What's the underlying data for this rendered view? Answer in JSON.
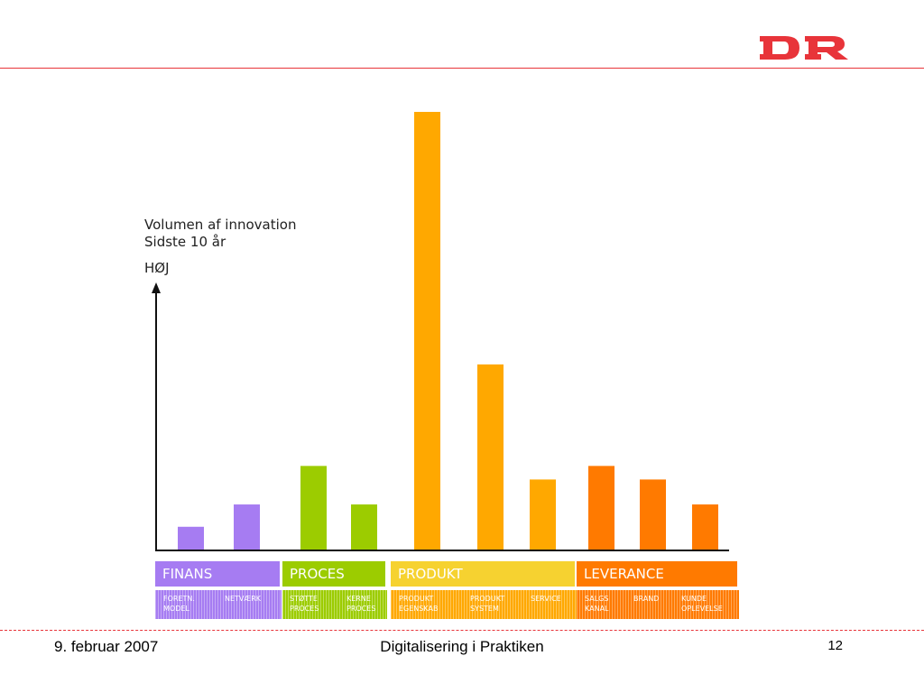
{
  "header": {
    "logo_text": "DR",
    "logo_color": "#e8343a"
  },
  "footer": {
    "date": "9. februar 2007",
    "title": "Digitalisering i Praktiken",
    "page": "12"
  },
  "chart_data": {
    "type": "bar",
    "title": "",
    "ylabel_line1": "Volumen af innovation",
    "ylabel_line2": "Sidste 10 år",
    "y_high_label": "HØJ",
    "ylim": [
      0,
      100
    ],
    "grid": false,
    "categories": [
      {
        "group": "FINANS",
        "label": "FORETN.\nMODEL",
        "value": 5.2,
        "color": "#a67cf2"
      },
      {
        "group": "FINANS",
        "label": "NETVÆRK",
        "value": 10.3,
        "color": "#a67cf2"
      },
      {
        "group": "PROCES",
        "label": "STØTTE\nPROCES",
        "value": 19.1,
        "color": "#9ccc00"
      },
      {
        "group": "PROCES",
        "label": "KERNE\nPROCES",
        "value": 10.3,
        "color": "#9ccc00"
      },
      {
        "group": "PRODUKT",
        "label": "PRODUKT\nEGENSKAB",
        "value": 100,
        "color": "#ffa800"
      },
      {
        "group": "PRODUKT",
        "label": "PRODUKT\nSYSTEM",
        "value": 42.3,
        "color": "#ffa800"
      },
      {
        "group": "PRODUKT",
        "label": "SERVICE",
        "value": 16.0,
        "color": "#ffa800"
      },
      {
        "group": "LEVERANCE",
        "label": "SALGS\nKANAL",
        "value": 19.1,
        "color": "#ff7a00"
      },
      {
        "group": "LEVERANCE",
        "label": "BRAND",
        "value": 16.0,
        "color": "#ff7a00"
      },
      {
        "group": "LEVERANCE",
        "label": "KUNDE\nOPLEVELSE",
        "value": 10.3,
        "color": "#ff7a00"
      }
    ],
    "groups": [
      {
        "name": "FINANS",
        "color": "#a67cf2"
      },
      {
        "name": "PROCES",
        "color": "#9ccc00"
      },
      {
        "name": "PRODUKT",
        "color": "#f6d230"
      },
      {
        "name": "LEVERANCE",
        "color": "#ff7a00"
      }
    ]
  }
}
